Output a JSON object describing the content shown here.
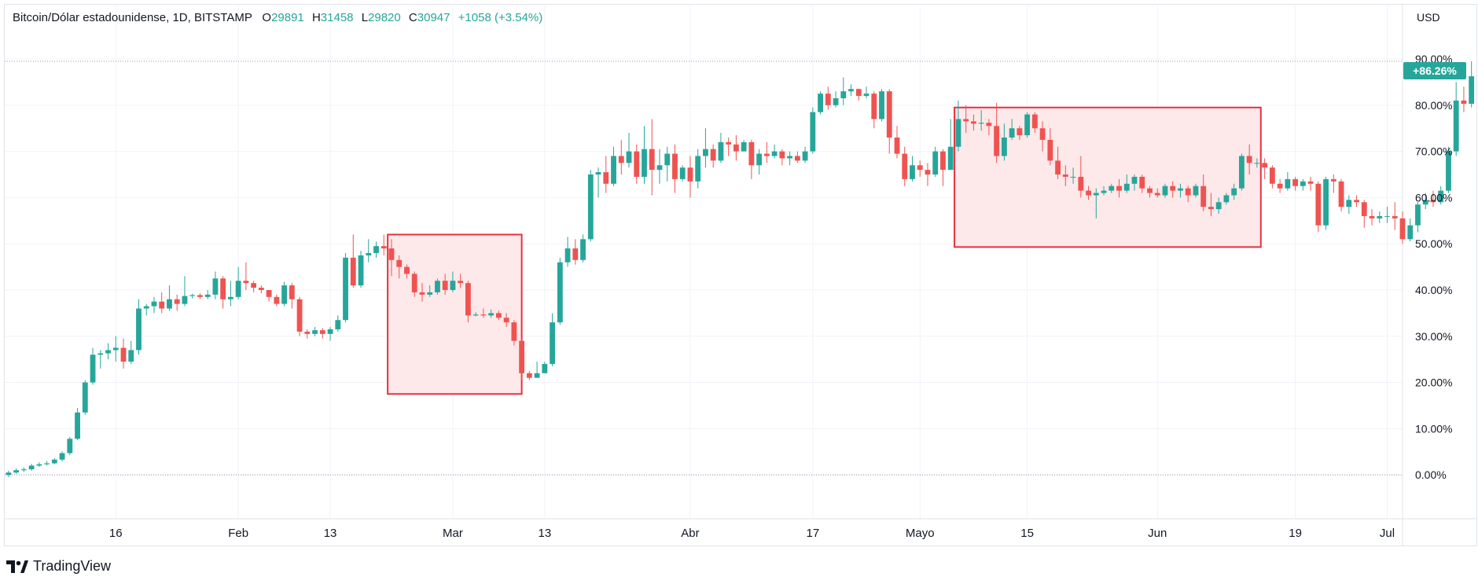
{
  "header": {
    "symbol": "Bitcoin/Dólar estadounidense, 1D, BITSTAMP",
    "open_label": "O",
    "open_value": "29891",
    "high_label": "H",
    "high_value": "31458",
    "low_label": "L",
    "low_value": "29820",
    "close_label": "C",
    "close_value": "30947",
    "change_value": "+1058 (+3.54%)"
  },
  "currency": "USD",
  "last_value_label": "+86.26%",
  "branding": {
    "name": "TradingView"
  },
  "colors": {
    "up": "#26a69a",
    "down": "#ef5350",
    "highlight_border": "#e5323f",
    "highlight_fill": "#fde8ea",
    "grid": "#f0f3fa"
  },
  "chart_data": {
    "type": "candlestick",
    "title": "Bitcoin/Dólar estadounidense, 1D, BITSTAMP",
    "y_unit": "% change",
    "y_ticks": [
      0,
      10,
      20,
      30,
      40,
      50,
      60,
      70,
      80,
      90
    ],
    "y_tick_labels": [
      "0.00%",
      "10.00%",
      "20.00%",
      "30.00%",
      "40.00%",
      "50.00%",
      "60.00%",
      "70.00%",
      "80.00%",
      "90.00%"
    ],
    "ylim": [
      -9.5,
      98
    ],
    "x_tick_labels": [
      {
        "label": "16",
        "idx": 14
      },
      {
        "label": "Feb",
        "idx": 30
      },
      {
        "label": "13",
        "idx": 42
      },
      {
        "label": "Mar",
        "idx": 58
      },
      {
        "label": "13",
        "idx": 70
      },
      {
        "label": "Abr",
        "idx": 89
      },
      {
        "label": "17",
        "idx": 105
      },
      {
        "label": "Mayo",
        "idx": 119
      },
      {
        "label": "15",
        "idx": 133
      },
      {
        "label": "Jun",
        "idx": 150
      },
      {
        "label": "19",
        "idx": 168
      },
      {
        "label": "Jul",
        "idx": 180
      }
    ],
    "x_range": [
      -0.5,
      182
    ],
    "highlights": [
      {
        "from_idx": 49.5,
        "to_idx": 67,
        "y_low": 17.5,
        "y_high": 52
      },
      {
        "from_idx": 123.5,
        "to_idx": 163.5,
        "y_low": 49.3,
        "y_high": 79.5
      }
    ],
    "candles": [
      [
        0,
        0.5,
        -0.5,
        0.9
      ],
      [
        0.5,
        1,
        0.2,
        1.4
      ],
      [
        1,
        1.2,
        0.6,
        1.6
      ],
      [
        1.2,
        2,
        0.9,
        2.4
      ],
      [
        2,
        2.3,
        1.7,
        2.7
      ],
      [
        2.3,
        2.5,
        2,
        3
      ],
      [
        2.5,
        3.3,
        2.3,
        3.6
      ],
      [
        3.3,
        4.7,
        2.9,
        5.1
      ],
      [
        4.7,
        7.8,
        4.3,
        8.2
      ],
      [
        7.8,
        13.5,
        7.5,
        14.5
      ],
      [
        13.5,
        20,
        13,
        20.5
      ],
      [
        20,
        26,
        19.5,
        27.5
      ],
      [
        26,
        26.3,
        23,
        27
      ],
      [
        26.3,
        27,
        25,
        28.5
      ],
      [
        27,
        27.5,
        24.5,
        30
      ],
      [
        27.5,
        24.5,
        23,
        29.5
      ],
      [
        24.5,
        27,
        24,
        29
      ],
      [
        27,
        36,
        26,
        38
      ],
      [
        36,
        36.5,
        34.5,
        37
      ],
      [
        36.5,
        37.5,
        35,
        38.5
      ],
      [
        37.5,
        36,
        35,
        39.5
      ],
      [
        36,
        38,
        35.5,
        41
      ],
      [
        38,
        37,
        35.5,
        39
      ],
      [
        37,
        38.7,
        36.5,
        43
      ],
      [
        38.7,
        38.9,
        38.2,
        39.2
      ],
      [
        38.9,
        38.5,
        38,
        39.3
      ],
      [
        38.5,
        39,
        38,
        40
      ],
      [
        39,
        42.5,
        38,
        44
      ],
      [
        42.5,
        38,
        36,
        43
      ],
      [
        38,
        38.5,
        36.5,
        42
      ],
      [
        38.5,
        42,
        38,
        45
      ],
      [
        42,
        41.5,
        40,
        46
      ],
      [
        41.5,
        40.5,
        39.5,
        42
      ],
      [
        40.5,
        40,
        39.3,
        41
      ],
      [
        40,
        38.5,
        37.5,
        40
      ],
      [
        38.5,
        37,
        36.5,
        39
      ],
      [
        37,
        41,
        36.5,
        41.8
      ],
      [
        41,
        38,
        36,
        41.5
      ],
      [
        38,
        31,
        30,
        38.5
      ],
      [
        31,
        30.5,
        29.5,
        31.5
      ],
      [
        30.5,
        31.3,
        30,
        32
      ],
      [
        31.3,
        30.5,
        29.5,
        31.8
      ],
      [
        30.5,
        31.5,
        29,
        32
      ],
      [
        31.5,
        33.5,
        31,
        34.5
      ],
      [
        33.5,
        47,
        33,
        48
      ],
      [
        47,
        41,
        40.5,
        52
      ],
      [
        41,
        47.5,
        40.5,
        48.5
      ],
      [
        47.5,
        48,
        46,
        51
      ],
      [
        48,
        49.5,
        47,
        50.5
      ],
      [
        49.5,
        49,
        47.5,
        52
      ],
      [
        49,
        46.5,
        43,
        51
      ],
      [
        46.5,
        45,
        42.5,
        47.5
      ],
      [
        45,
        43.5,
        42.5,
        45.5
      ],
      [
        43.5,
        39.5,
        38.5,
        44
      ],
      [
        39.5,
        39,
        37.5,
        41.5
      ],
      [
        39,
        39.5,
        38.5,
        41
      ],
      [
        39.5,
        42,
        39,
        42.5
      ],
      [
        42,
        40,
        39,
        43.5
      ],
      [
        40,
        42,
        39.5,
        44
      ],
      [
        42,
        41.5,
        40.5,
        43.5
      ],
      [
        41.5,
        34.5,
        33,
        42
      ],
      [
        34.5,
        34.7,
        34.3,
        35.2
      ],
      [
        34.7,
        34.5,
        34,
        36
      ],
      [
        34.5,
        35,
        34,
        35.8
      ],
      [
        35,
        34,
        33.5,
        35.5
      ],
      [
        34,
        33,
        32,
        35
      ],
      [
        33,
        29,
        28,
        33.5
      ],
      [
        29,
        22,
        20.5,
        29.5
      ],
      [
        22,
        21,
        20.5,
        22.5
      ],
      [
        21,
        22,
        21,
        24.5
      ],
      [
        22,
        24,
        22,
        24.5
      ],
      [
        24,
        33,
        23.5,
        35
      ],
      [
        33,
        46,
        32.5,
        47
      ],
      [
        46,
        49,
        45,
        51.5
      ],
      [
        49,
        46.5,
        45.5,
        51
      ],
      [
        46.5,
        51,
        46,
        52
      ],
      [
        51,
        65,
        50.5,
        66
      ],
      [
        65,
        65.5,
        60,
        66.5
      ],
      [
        65.5,
        63,
        61,
        69
      ],
      [
        63,
        69,
        62.5,
        71
      ],
      [
        69,
        67.5,
        65,
        72.5
      ],
      [
        67.5,
        70,
        66.5,
        74
      ],
      [
        70,
        64.5,
        63,
        71.5
      ],
      [
        64.5,
        70.5,
        63,
        75.5
      ],
      [
        70.5,
        66,
        60.5,
        77
      ],
      [
        66,
        67,
        63,
        70.5
      ],
      [
        67,
        69.5,
        63.5,
        71
      ],
      [
        69.5,
        64,
        61,
        71.5
      ],
      [
        64,
        66.5,
        63.5,
        67
      ],
      [
        66.5,
        63.5,
        60,
        69
      ],
      [
        63.5,
        69,
        62,
        70.5
      ],
      [
        69,
        70.5,
        66.5,
        75
      ],
      [
        70.5,
        68,
        66.5,
        71.5
      ],
      [
        68,
        72,
        67.5,
        74
      ],
      [
        72,
        71.5,
        69,
        73
      ],
      [
        71.5,
        70,
        68,
        73.5
      ],
      [
        70,
        72,
        70,
        72.5
      ],
      [
        72,
        67,
        64,
        72.5
      ],
      [
        67,
        69.5,
        65,
        70.5
      ],
      [
        69.5,
        69,
        67.5,
        72
      ],
      [
        69,
        70,
        68.5,
        71.5
      ],
      [
        70,
        68.5,
        67,
        70.5
      ],
      [
        68.5,
        69,
        67,
        70
      ],
      [
        69,
        68,
        67.5,
        70
      ],
      [
        68,
        70,
        67.5,
        71
      ],
      [
        70,
        78.5,
        69.5,
        79.5
      ],
      [
        78.5,
        82.5,
        78,
        83
      ],
      [
        82.5,
        80,
        79,
        84
      ],
      [
        80,
        81.5,
        79.5,
        83
      ],
      [
        81.5,
        83,
        80,
        86
      ],
      [
        83,
        83.5,
        82,
        84.5
      ],
      [
        83.5,
        82,
        81,
        83.6
      ],
      [
        82,
        82.5,
        81.5,
        84
      ],
      [
        82.5,
        77,
        75,
        83
      ],
      [
        77,
        83,
        76.5,
        83.5
      ],
      [
        83,
        73,
        69.5,
        83.5
      ],
      [
        73,
        69.5,
        68.5,
        75.5
      ],
      [
        69.5,
        64,
        62.5,
        71
      ],
      [
        64,
        67,
        63.5,
        69
      ],
      [
        67,
        66,
        64.5,
        68
      ],
      [
        66,
        65,
        62.5,
        67.5
      ],
      [
        65,
        70,
        64.5,
        71
      ],
      [
        70,
        66,
        62.5,
        70.5
      ],
      [
        66,
        71,
        66,
        77
      ],
      [
        71,
        77,
        70,
        81
      ],
      [
        77,
        76.5,
        74,
        80
      ],
      [
        76.5,
        76,
        74.5,
        78
      ],
      [
        76,
        76.2,
        74.5,
        79
      ],
      [
        76.2,
        75.5,
        73.5,
        77
      ],
      [
        75.5,
        69,
        67.5,
        80.5
      ],
      [
        69,
        73,
        68,
        76
      ],
      [
        73,
        75,
        72.5,
        77
      ],
      [
        75,
        73.5,
        72.5,
        75.5
      ],
      [
        73.5,
        78,
        73,
        78.5
      ],
      [
        78,
        75,
        74,
        78.5
      ],
      [
        75,
        72.5,
        70,
        76.5
      ],
      [
        72.5,
        68,
        67,
        75
      ],
      [
        68,
        65,
        64,
        71
      ],
      [
        65,
        64.5,
        62.5,
        67
      ],
      [
        64.5,
        64.5,
        63,
        66.5
      ],
      [
        64.5,
        61.5,
        60,
        69
      ],
      [
        61.5,
        60.5,
        59.5,
        62.5
      ],
      [
        60.5,
        61,
        55.5,
        62
      ],
      [
        61,
        61.5,
        60.5,
        62.5
      ],
      [
        61.5,
        62.5,
        61,
        63
      ],
      [
        62.5,
        61.5,
        60,
        64
      ],
      [
        61.5,
        63,
        61,
        65
      ],
      [
        63,
        64.5,
        61.5,
        65
      ],
      [
        64.5,
        62,
        61,
        65
      ],
      [
        62,
        61,
        60,
        62.5
      ],
      [
        61,
        60.5,
        60,
        62
      ],
      [
        60.5,
        62.5,
        60,
        63
      ],
      [
        62.5,
        61.5,
        60,
        63.5
      ],
      [
        61.5,
        62,
        60,
        63
      ],
      [
        62,
        60.5,
        59,
        62.5
      ],
      [
        60.5,
        62.5,
        60,
        63
      ],
      [
        62.5,
        58,
        57,
        65
      ],
      [
        58,
        57.5,
        56,
        61
      ],
      [
        57.5,
        59,
        56.5,
        60
      ],
      [
        59,
        60.5,
        58.5,
        61
      ],
      [
        60.5,
        62,
        59.5,
        63
      ],
      [
        62,
        69,
        61.5,
        69.5
      ],
      [
        69,
        67.5,
        65,
        71.5
      ],
      [
        67.5,
        67.5,
        66.5,
        68.5
      ],
      [
        67.5,
        66.5,
        64,
        68.5
      ],
      [
        66.5,
        63,
        62,
        67
      ],
      [
        63,
        62,
        61,
        64
      ],
      [
        62,
        64,
        61.5,
        65.5
      ],
      [
        64,
        62.5,
        61.5,
        64.5
      ],
      [
        62.5,
        63.5,
        61.5,
        64
      ],
      [
        63.5,
        63,
        61.5,
        64.5
      ],
      [
        63,
        54,
        52.5,
        63.5
      ],
      [
        54,
        64,
        53,
        64.5
      ],
      [
        64,
        63.5,
        61,
        65
      ],
      [
        63.5,
        58,
        57,
        64
      ],
      [
        58,
        59.5,
        56.5,
        60.5
      ],
      [
        59.5,
        59,
        58,
        60.5
      ],
      [
        59,
        56,
        53.5,
        59.5
      ],
      [
        56,
        55.5,
        54,
        57.5
      ],
      [
        55.5,
        56,
        54.5,
        57
      ],
      [
        56,
        56,
        54.5,
        58
      ],
      [
        56,
        55.5,
        53,
        59
      ],
      [
        55.5,
        51,
        50,
        57
      ],
      [
        51,
        54,
        50.5,
        55.5
      ],
      [
        54,
        58.5,
        52.5,
        59
      ],
      [
        58.5,
        59.5,
        57.5,
        61
      ],
      [
        59.5,
        59,
        58,
        61.5
      ],
      [
        59,
        61.5,
        58.5,
        62.5
      ],
      [
        61.5,
        70,
        61,
        71
      ],
      [
        70,
        81,
        69,
        85
      ],
      [
        81,
        80.3,
        78.5,
        84
      ],
      [
        80.3,
        86.26,
        79.5,
        89.5
      ]
    ]
  }
}
